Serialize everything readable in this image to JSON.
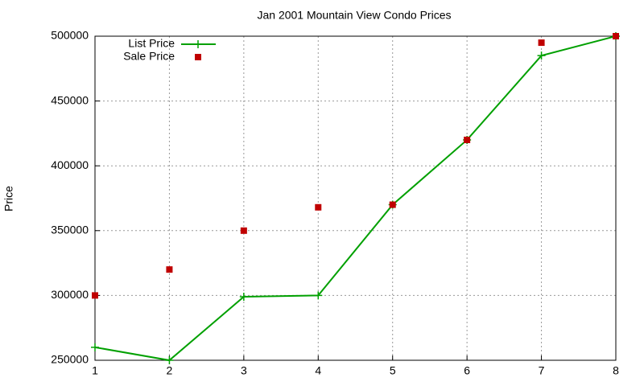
{
  "chart_data": {
    "type": "line",
    "title": "Jan 2001 Mountain View Condo Prices",
    "y_label": "Price",
    "x": [
      1,
      2,
      3,
      4,
      5,
      6,
      7,
      8
    ],
    "series": [
      {
        "name": "List Price",
        "color": "#00a000",
        "style": "linespoints",
        "values": [
          260000,
          250000,
          299000,
          300000,
          370000,
          420000,
          485000,
          500000
        ]
      },
      {
        "name": "Sale Price",
        "color": "#c00000",
        "style": "points",
        "values": [
          300000,
          320000,
          350000,
          368000,
          370000,
          420000,
          495000,
          500000
        ]
      }
    ],
    "xlim": [
      1,
      8
    ],
    "xticks": [
      1,
      2,
      3,
      4,
      5,
      6,
      7,
      8
    ],
    "ylim": [
      250000,
      500000
    ],
    "yticks": [
      250000,
      300000,
      350000,
      400000,
      450000,
      500000
    ],
    "grid": true,
    "legend": "top-left"
  }
}
